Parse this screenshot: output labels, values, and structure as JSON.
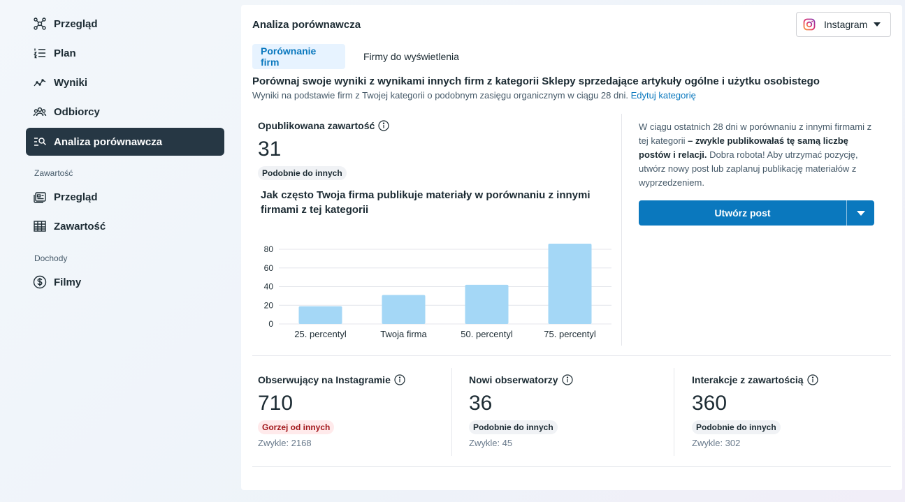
{
  "sidebar": {
    "items": [
      {
        "label": "Przegląd",
        "icon": "network-icon"
      },
      {
        "label": "Plan",
        "icon": "numbered-list-icon"
      },
      {
        "label": "Wyniki",
        "icon": "trend-line-icon"
      },
      {
        "label": "Odbiorcy",
        "icon": "people-icon"
      },
      {
        "label": "Analiza porównawcza",
        "icon": "search-list-icon",
        "active": true
      }
    ],
    "section_content": "Zawartość",
    "content_items": [
      {
        "label": "Przegląd",
        "icon": "content-overview-icon"
      },
      {
        "label": "Zawartość",
        "icon": "table-icon"
      }
    ],
    "section_income": "Dochody",
    "income_items": [
      {
        "label": "Filmy",
        "icon": "dollar-icon"
      }
    ]
  },
  "header": {
    "title": "Analiza porównawcza",
    "platform": "Instagram"
  },
  "tabs": [
    {
      "label": "Porównanie firm",
      "active": true
    },
    {
      "label": "Firmy do wyświetlenia",
      "active": false
    }
  ],
  "intro": {
    "headline": "Porównaj swoje wyniki z wynikami innych firm z kategorii Sklepy sprzedające artykuły ogólne i użytku osobistego",
    "subline": "Wyniki na podstawie firm z Twojej kategorii o podobnym zasięgu organicznym w ciągu 28 dni.",
    "edit_link": "Edytuj kategorię"
  },
  "published": {
    "title": "Opublikowana zawartość",
    "value": "31",
    "badge": "Podobnie do innych",
    "chart_title": "Jak często Twoja firma publikuje materiały w porównaniu z innymi firmami z tej kategorii"
  },
  "chart_data": {
    "type": "bar",
    "categories": [
      "25. percentyl",
      "Twoja firma",
      "50. percentyl",
      "75. percentyl"
    ],
    "values": [
      19,
      31,
      42,
      86
    ],
    "ylim": [
      0,
      80
    ],
    "yticks": [
      "0",
      "20",
      "40",
      "60",
      "80"
    ],
    "grid": true,
    "bar_color": "#a4d7f6"
  },
  "summary": {
    "text_1": "W ciągu ostatnich 28 dni w porównaniu z innymi firmami z tej kategorii",
    "text_bold": "– zwykle publikowałaś tę samą liczbę postów i relacji.",
    "text_2": "Dobra robota! Aby utrzymać pozycję, utwórz nowy post lub zaplanuj publikację materiałów z wyprzedzeniem.",
    "button_label": "Utwórz post"
  },
  "metrics": [
    {
      "title": "Obserwujący na Instagramie",
      "value": "710",
      "badge": "Gorzej od innych",
      "usual": "Zwykle: 2168"
    },
    {
      "title": "Nowi obserwatorzy",
      "value": "36",
      "badge": "Podobnie do innych",
      "usual": "Zwykle: 45"
    },
    {
      "title": "Interakcje z zawartością",
      "value": "360",
      "badge": "Podobnie do innych",
      "usual": "Zwykle: 302"
    }
  ],
  "colors": {
    "accent": "#0a78be",
    "active_nav": "#263744",
    "bar": "#a4d7f6",
    "bad_badge": "#ffeaeb"
  }
}
